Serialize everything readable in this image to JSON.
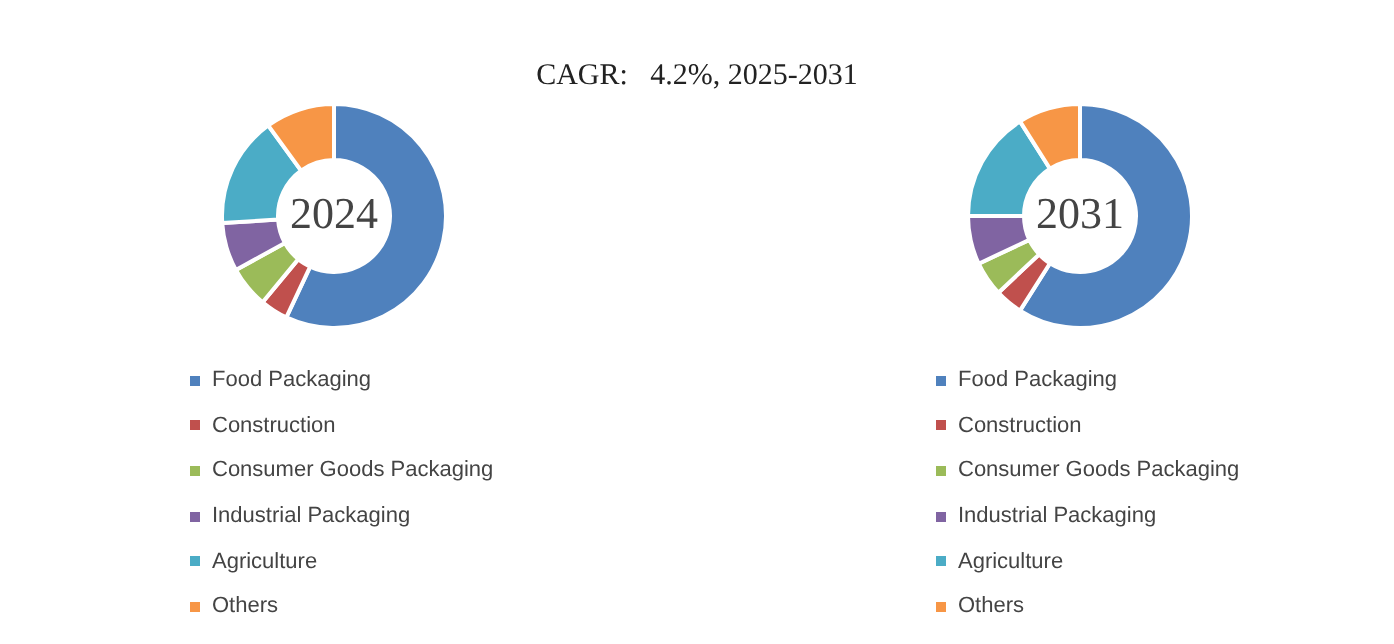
{
  "chart_data": [
    {
      "type": "donut",
      "title": "2024",
      "categories": [
        "Food Packaging",
        "Construction",
        "Consumer Goods Packaging",
        "Industrial Packaging",
        "Agriculture",
        "Others"
      ],
      "values": [
        57,
        4,
        6,
        7,
        16,
        10
      ],
      "colors": [
        "#4f81bd",
        "#c0504d",
        "#9bbb59",
        "#8064a2",
        "#4bacc6",
        "#f79646"
      ],
      "legend": "bottom",
      "annotations": [
        "CAGR:   4.2%, 2025-2031"
      ]
    },
    {
      "type": "donut",
      "title": "2031",
      "categories": [
        "Food Packaging",
        "Construction",
        "Consumer Goods Packaging",
        "Industrial Packaging",
        "Agriculture",
        "Others"
      ],
      "values": [
        59,
        4,
        5,
        7,
        16,
        9
      ],
      "colors": [
        "#4f81bd",
        "#c0504d",
        "#9bbb59",
        "#8064a2",
        "#4bacc6",
        "#f79646"
      ],
      "legend": "bottom"
    }
  ]
}
